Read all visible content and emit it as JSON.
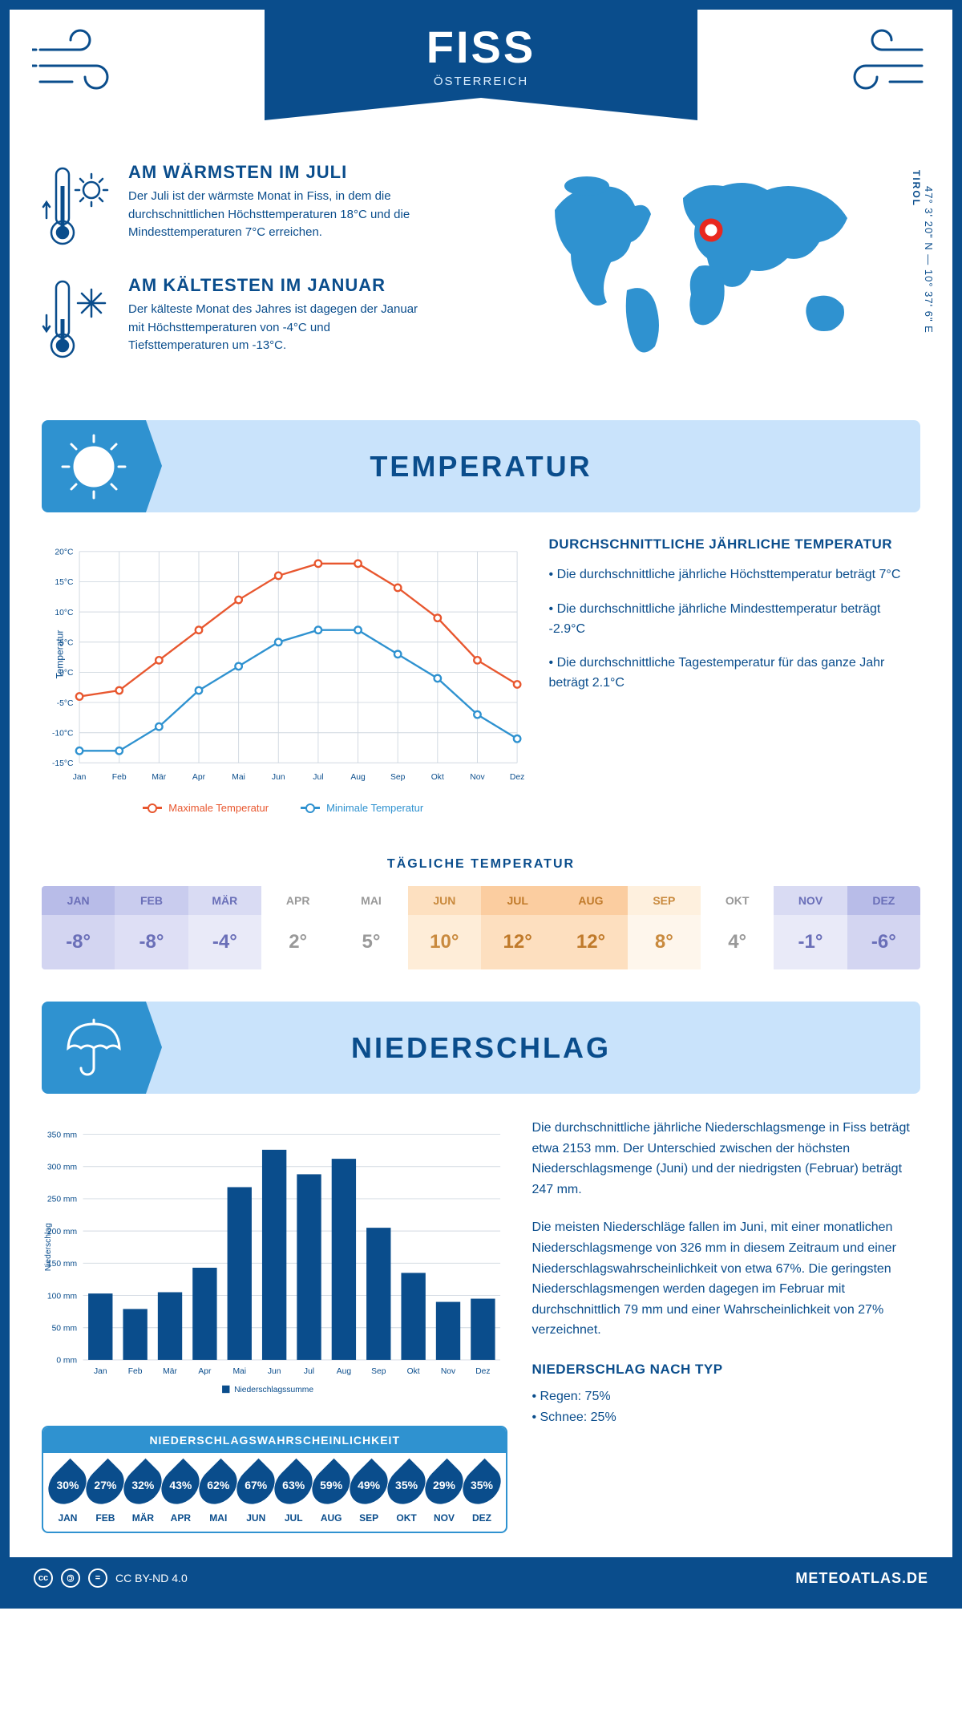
{
  "colors": {
    "primary": "#0a4d8c",
    "accent": "#2f92d0",
    "light_blue": "#c9e3fb",
    "max_line": "#e8572f",
    "min_line": "#2f92d0",
    "marker_red": "#e8281f"
  },
  "header": {
    "title": "FISS",
    "subtitle": "ÖSTERREICH"
  },
  "location": {
    "region": "TIROL",
    "coords": "47° 3' 20\" N — 10° 37' 6\" E"
  },
  "warmest": {
    "title": "AM WÄRMSTEN IM JULI",
    "text": "Der Juli ist der wärmste Monat in Fiss, in dem die durchschnittlichen Höchsttemperaturen 18°C und die Mindesttemperaturen 7°C erreichen."
  },
  "coldest": {
    "title": "AM KÄLTESTEN IM JANUAR",
    "text": "Der kälteste Monat des Jahres ist dagegen der Januar mit Höchsttemperaturen von -4°C und Tiefsttemperaturen um -13°C."
  },
  "temp_section": {
    "title": "TEMPERATUR",
    "subtitle": "DURCHSCHNITTLICHE JÄHRLICHE TEMPERATUR",
    "bullet1": "• Die durchschnittliche jährliche Höchsttemperatur beträgt 7°C",
    "bullet2": "• Die durchschnittliche jährliche Mindesttemperatur beträgt -2.9°C",
    "bullet3": "• Die durchschnittliche Tagestemperatur für das ganze Jahr beträgt 2.1°C",
    "legend_max": "Maximale Temperatur",
    "legend_min": "Minimale Temperatur",
    "y_label": "Temperatur"
  },
  "temp_chart": {
    "months": [
      "Jan",
      "Feb",
      "Mär",
      "Apr",
      "Mai",
      "Jun",
      "Jul",
      "Aug",
      "Sep",
      "Okt",
      "Nov",
      "Dez"
    ],
    "max": [
      -4,
      -3,
      2,
      7,
      12,
      16,
      18,
      18,
      14,
      9,
      2,
      -2
    ],
    "min": [
      -13,
      -13,
      -9,
      -3,
      1,
      5,
      7,
      7,
      3,
      -1,
      -7,
      -11
    ],
    "ymin": -15,
    "ymax": 20,
    "ystep": 5
  },
  "daily": {
    "title": "TÄGLICHE TEMPERATUR",
    "months": [
      "JAN",
      "FEB",
      "MÄR",
      "APR",
      "MAI",
      "JUN",
      "JUL",
      "AUG",
      "SEP",
      "OKT",
      "NOV",
      "DEZ"
    ],
    "values": [
      "-8°",
      "-8°",
      "-4°",
      "2°",
      "5°",
      "10°",
      "12°",
      "12°",
      "8°",
      "4°",
      "-1°",
      "-6°"
    ],
    "head_colors": [
      "#b8bce8",
      "#c9ccee",
      "#d9dbf3",
      "#ffffff",
      "#ffffff",
      "#fde0c0",
      "#fbcda0",
      "#fbcda0",
      "#fef0de",
      "#ffffff",
      "#d9dbf3",
      "#b8bce8"
    ],
    "val_colors": [
      "#d3d5f1",
      "#dedff5",
      "#e9eaf8",
      "#ffffff",
      "#ffffff",
      "#feedd8",
      "#fddfbf",
      "#fddfbf",
      "#fef6ec",
      "#ffffff",
      "#e9eaf8",
      "#d3d5f1"
    ],
    "text_colors": [
      "#6a6fb8",
      "#6a6fb8",
      "#6a6fb8",
      "#999",
      "#999",
      "#c98a3e",
      "#c07a2a",
      "#c07a2a",
      "#c98a3e",
      "#999",
      "#6a6fb8",
      "#6a6fb8"
    ]
  },
  "precip_section": {
    "title": "NIEDERSCHLAG",
    "para1": "Die durchschnittliche jährliche Niederschlagsmenge in Fiss beträgt etwa 2153 mm. Der Unterschied zwischen der höchsten Niederschlagsmenge (Juni) und der niedrigsten (Februar) beträgt 247 mm.",
    "para2": "Die meisten Niederschläge fallen im Juni, mit einer monatlichen Niederschlagsmenge von 326 mm in diesem Zeitraum und einer Niederschlagswahrscheinlichkeit von etwa 67%. Die geringsten Niederschlagsmengen werden dagegen im Februar mit durchschnittlich 79 mm und einer Wahrscheinlichkeit von 27% verzeichnet.",
    "type_title": "NIEDERSCHLAG NACH TYP",
    "type_rain": "• Regen: 75%",
    "type_snow": "• Schnee: 25%",
    "y_label": "Niederschlag",
    "legend": "Niederschlagssumme"
  },
  "precip_chart": {
    "months": [
      "Jan",
      "Feb",
      "Mär",
      "Apr",
      "Mai",
      "Jun",
      "Jul",
      "Aug",
      "Sep",
      "Okt",
      "Nov",
      "Dez"
    ],
    "values": [
      103,
      79,
      105,
      143,
      268,
      326,
      288,
      312,
      205,
      135,
      90,
      95
    ],
    "ymin": 0,
    "ymax": 350,
    "ystep": 50
  },
  "prob": {
    "title": "NIEDERSCHLAGSWAHRSCHEINLICHKEIT",
    "months": [
      "JAN",
      "FEB",
      "MÄR",
      "APR",
      "MAI",
      "JUN",
      "JUL",
      "AUG",
      "SEP",
      "OKT",
      "NOV",
      "DEZ"
    ],
    "values": [
      "30%",
      "27%",
      "32%",
      "43%",
      "62%",
      "67%",
      "63%",
      "59%",
      "49%",
      "35%",
      "29%",
      "35%"
    ]
  },
  "footer": {
    "license": "CC BY-ND 4.0",
    "site": "METEOATLAS.DE"
  }
}
